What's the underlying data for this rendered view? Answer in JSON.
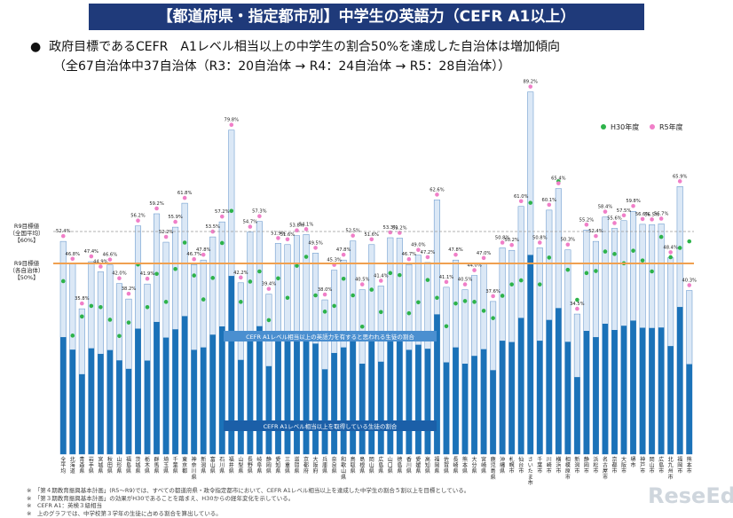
{
  "header": {
    "title": "【都道府県・指定都市別】中学生の英語力（CEFR A1以上）",
    "bullet": "●",
    "subtitle_line1": "政府目標であるCEFR　A1レベル相当以上の中学生の割合50%を達成した自治体は増加傾向",
    "subtitle_line2": "（全67自治体中37自治体（R3：20自治体 → R4：24自治体 → R5：28自治体））"
  },
  "legend": {
    "h30": "H30年度",
    "r5": "R5年度"
  },
  "targets": {
    "national_label_1": "R9目標値",
    "national_label_2": "（全国平均）",
    "national_label_3": "【60%】",
    "local_label_1": "R9目標値",
    "local_label_2": "（各自治体）",
    "local_label_3": "【50%】"
  },
  "annotations": {
    "upper": "CEFR A1レベル相当以上の英語力を有すると思われる生徒の割合",
    "lower": "CEFR A1レベル相当以上を取得している生徒の割合"
  },
  "footnotes": [
    "※　「第４期教育振興基本計画」(R5〜R9)では、すべての都道府県・政令指定都市において、CEFR A1レベル相当以上を達成した中学生の割合５割以上を目標としている。",
    "※　「第３期教育振興基本計画」の効果がH30であることを踏まえ、H30からの経年変化を示している。",
    "※　CEFR A1：英検３級相当",
    "※　上のグラフでは、中学校第３学年の生徒に占める割合を算出している。"
  ],
  "logo": "ReseEd",
  "colors": {
    "title_bg": "#1f3a7a",
    "bar_dark": "#1b72b8",
    "bar_light": "#dbe8f6",
    "bar_outline": "#5b8fc8",
    "h30_dot": "#2db34a",
    "r5_dot": "#f07fc8",
    "target_50": "#f0a050",
    "target_60": "#999999",
    "label_box": "#4a8fd0"
  },
  "chart_data": {
    "type": "bar",
    "ylim": [
      0,
      90
    ],
    "target_lines": [
      50,
      60
    ],
    "categories": [
      "全平均",
      "北海道",
      "青森県",
      "岩手県",
      "宮城県",
      "秋田県",
      "山形県",
      "福島県",
      "茨城県",
      "栃木県",
      "群馬県",
      "埼玉県",
      "千葉県",
      "東京都",
      "神奈川県",
      "新潟県",
      "富山県",
      "石川県",
      "福井県",
      "山梨県",
      "長野県",
      "岐阜県",
      "静岡県",
      "愛知県",
      "三重県",
      "滋賀県",
      "京都府",
      "大阪府",
      "兵庫県",
      "奈良県",
      "和歌山県",
      "鳥取県",
      "島根県",
      "岡山県",
      "広島県",
      "山口県",
      "徳島県",
      "香川県",
      "愛媛県",
      "高知県",
      "福岡県",
      "佐賀県",
      "長崎県",
      "熊本県",
      "大分県",
      "宮崎県",
      "鹿児島県",
      "沖縄県",
      "札幌市",
      "仙台市",
      "さいたま市",
      "千葉市",
      "川崎市",
      "横浜市",
      "相模原市",
      "新潟市",
      "静岡市",
      "浜松市",
      "名古屋市",
      "京都市",
      "大阪市",
      "堺市",
      "神戸市",
      "岡山市",
      "広島市",
      "北九州市",
      "福岡市",
      "熊本市"
    ],
    "series": [
      {
        "name": "R5年度",
        "values": [
          52.4,
          46.8,
          35.8,
          47.4,
          44.9,
          46.6,
          42.0,
          38.2,
          56.2,
          41.9,
          59.2,
          52.2,
          55.9,
          61.8,
          46.7,
          47.8,
          53.5,
          57.2,
          79.8,
          42.2,
          54.7,
          57.3,
          39.4,
          51.9,
          51.6,
          53.8,
          54.1,
          49.5,
          38.0,
          45.3,
          47.8,
          52.5,
          40.5,
          51.6,
          41.4,
          53.3,
          53.2,
          46.7,
          49.0,
          47.2,
          62.6,
          41.1,
          47.8,
          40.5,
          44.0,
          47.0,
          37.6,
          50.8,
          50.2,
          61.0,
          89.2,
          50.8,
          60.1,
          65.4,
          50.3,
          34.5,
          55.2,
          52.4,
          58.4,
          55.6,
          57.5,
          59.8,
          56.6,
          56.5,
          56.7,
          48.4,
          65.9,
          40.3
        ]
      },
      {
        "name": "H30年度",
        "values": [
          42.6,
          29.2,
          33.9,
          36.5,
          36.2,
          33.1,
          29.1,
          32.4,
          46.7,
          36.2,
          44.4,
          37.5,
          45.6,
          52.1,
          44.0,
          38.1,
          43.4,
          52.0,
          59.9,
          37.5,
          42.5,
          45.0,
          33.0,
          43.3,
          38.5,
          46.4,
          48.6,
          39.1,
          35.1,
          36.5,
          43.2,
          39.1,
          31.4,
          40.5,
          35.0,
          44.6,
          44.1,
          34.7,
          37.4,
          42.9,
          38.5,
          31.5,
          37.1,
          37.7,
          37.5,
          35.3,
          33.5,
          39.0,
          41.8,
          42.8,
          61.9,
          41.8,
          48.4,
          67.2,
          45.4,
          38.0,
          44.6,
          45.1,
          49.9,
          49.3,
          47.0,
          50.1,
          47.7,
          45.0,
          53.5,
          48.5,
          50.8,
          52.4
        ]
      }
    ]
  }
}
